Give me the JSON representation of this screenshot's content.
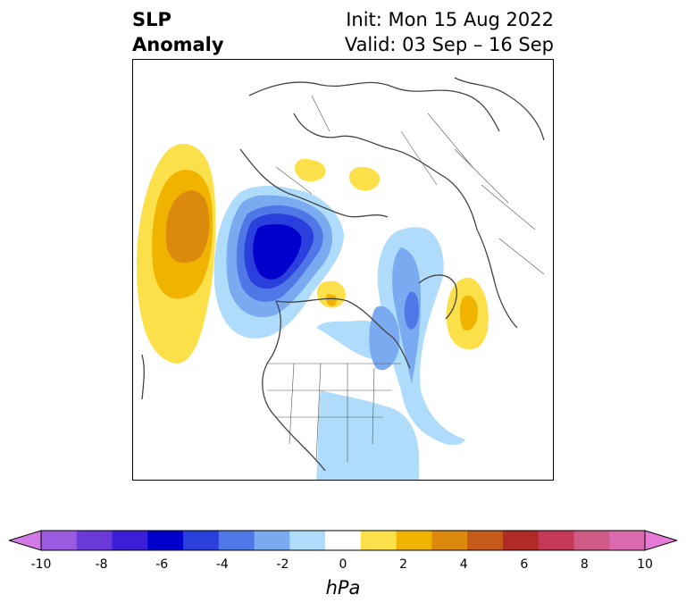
{
  "title": {
    "left_line1": "SLP",
    "left_line2": "Anomaly",
    "init": "Init: Mon 15 Aug 2022",
    "valid": "Valid: 03 Sep – 16 Sep"
  },
  "colorbar": {
    "unit": "hPa",
    "ticks": [
      "-10",
      "-8",
      "-6",
      "-4",
      "-2",
      "0",
      "2",
      "4",
      "6",
      "8",
      "10"
    ],
    "colors": [
      "#d07ae6",
      "#9b5ae0",
      "#6a3ad8",
      "#3a1fd6",
      "#0000cc",
      "#2a3fdc",
      "#5077e6",
      "#7aaaf0",
      "#aedcfa",
      "#ffffff",
      "#fbe04a",
      "#f0b400",
      "#dc8a0e",
      "#c65a18",
      "#b02a28",
      "#c43a56",
      "#d05a86",
      "#dc6aae",
      "#e67ad6"
    ]
  }
}
